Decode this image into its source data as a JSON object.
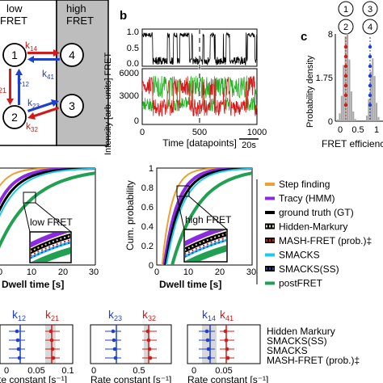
{
  "scheme": {
    "low_label": "low",
    "low_label2": "FRET",
    "high_label": "high",
    "high_label2": "FRET",
    "states": [
      "1",
      "2",
      "3",
      "4"
    ],
    "rates": {
      "k14": "14",
      "k41": "41",
      "k12": "12",
      "k21": "21",
      "k23": "23",
      "k32": "32"
    },
    "k": "k",
    "colors": {
      "red": "#d11a1a",
      "blue": "#1f3fd1",
      "shade": "#bdbdbd"
    }
  },
  "panel_b": {
    "label": "b",
    "ylabel": "Intensity [arb. units] FRET",
    "xlabel": "Time [datapoints]",
    "scalebar": "20s",
    "fret_ticks": [
      "1.0",
      "0.5",
      "0.0"
    ],
    "intensity_ticks": [
      "6000",
      "3000",
      "0"
    ],
    "x_ticks": [
      "0",
      "500",
      "1000"
    ]
  },
  "panel_c": {
    "label": "c",
    "states_top": [
      "1",
      "3"
    ],
    "states_bottom": [
      "2",
      "4"
    ],
    "ylabel": "Probability density",
    "y_ticks": [
      "8",
      "1.75",
      "0"
    ],
    "x_ticks": [
      "0",
      "0.5",
      "1"
    ],
    "xlabel": "FRET efficienc"
  },
  "panel_d": {
    "left": {
      "title": "low FRET",
      "xlabel": "Dwell time [s]",
      "x_ticks": [
        "0",
        "10",
        "20",
        "30"
      ]
    },
    "right": {
      "title": "high FRET",
      "xlabel": "Dwell time [s]",
      "ylabel": "Cum. probability",
      "y_ticks": [
        "1",
        "0.8",
        "0.6",
        "0.4",
        "0.2",
        "0"
      ],
      "x_ticks": [
        "0",
        "10",
        "20",
        "30"
      ]
    },
    "legend": [
      {
        "label": "Step finding",
        "color": "#f0a030",
        "style": "solid"
      },
      {
        "label": "Tracy (HMM)",
        "color": "#8a2be2",
        "style": "solid"
      },
      {
        "label": "ground truth (GT)",
        "color": "#000000",
        "style": "solid"
      },
      {
        "label": "Hidden-Markury",
        "color": "#d7d7a0",
        "style": "dotted"
      },
      {
        "label": "MASH-FRET (prob.)‡",
        "color": "#d11a1a",
        "style": "dotted"
      },
      {
        "label": "SMACKS",
        "color": "#20c8e8",
        "style": "solid"
      },
      {
        "label": "SMACKS(SS)",
        "color": "#1f3fd1",
        "style": "dotted"
      },
      {
        "label": "postFRET",
        "color": "#20a050",
        "style": "solid"
      }
    ]
  },
  "panel_e": {
    "groups": [
      {
        "k_a": "12",
        "k_b": "21",
        "xlabel": "te constant [s⁻¹]",
        "ticks": [
          "0",
          "0.05",
          "0.1"
        ]
      },
      {
        "k_a": "23",
        "k_b": "32",
        "xlabel": "Rate constant [s⁻¹]",
        "ticks": [
          "0",
          "0.5"
        ]
      },
      {
        "k_a": "14",
        "k_b": "41",
        "xlabel": "Rate constant [s⁻¹]",
        "ticks": [
          "0",
          "0.05"
        ]
      }
    ],
    "methods": [
      "Hidden Markury",
      "SMACKS(SS)",
      "SMACKS",
      "MASH-FRET (prob.)‡"
    ]
  }
}
